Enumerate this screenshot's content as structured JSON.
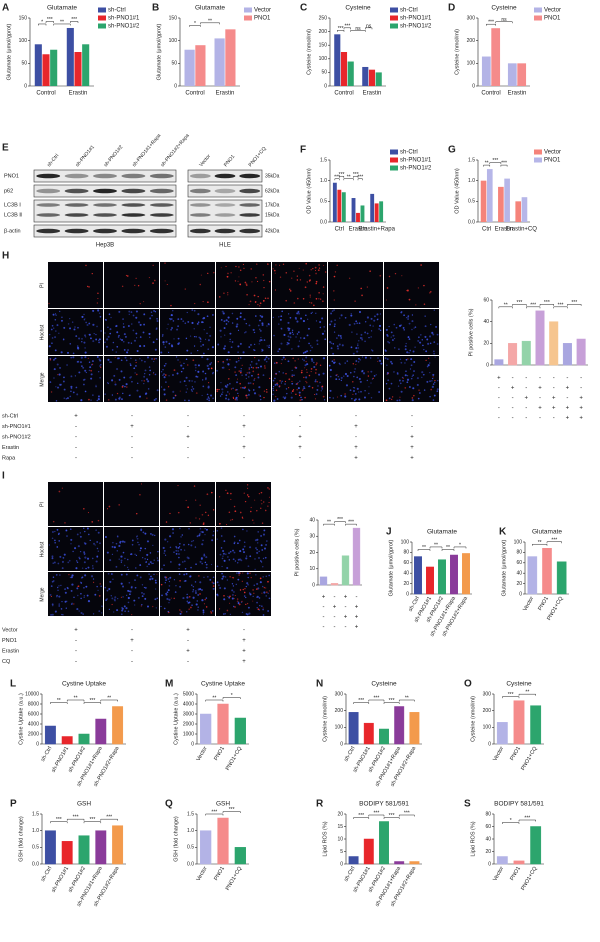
{
  "chart_data": [
    {
      "label": "A",
      "type": "bar",
      "title": "Glutamate",
      "ylabel": "Glutamate (μmol/gprot)",
      "categories": [
        "Control",
        "Erastin"
      ],
      "series": [
        {
          "name": "sh-Ctrl",
          "color": "#3d4fa3",
          "values": [
            92,
            128
          ]
        },
        {
          "name": "sh-PNO1#1",
          "color": "#e8262b",
          "values": [
            70,
            75
          ]
        },
        {
          "name": "sh-PNO1#2",
          "color": "#2ca56d",
          "values": [
            80,
            92
          ]
        }
      ],
      "ylim": [
        0,
        150
      ],
      "yticks": [
        0,
        50,
        100,
        150
      ],
      "annotations": [
        "*",
        "***",
        "**",
        "***"
      ],
      "legend": "right"
    },
    {
      "label": "B",
      "type": "bar",
      "title": "Glutamate",
      "ylabel": "Glutamate (μmol/gprot)",
      "categories": [
        "Control",
        "Erastin"
      ],
      "series": [
        {
          "name": "Vector",
          "color": "#b3b3e6",
          "values": [
            80,
            105
          ]
        },
        {
          "name": "PNO1",
          "color": "#f58b8b",
          "values": [
            90,
            125
          ]
        }
      ],
      "ylim": [
        0,
        150
      ],
      "yticks": [
        0,
        50,
        100,
        150
      ],
      "annotations": [
        "*",
        "**"
      ],
      "legend": "right"
    },
    {
      "label": "C",
      "type": "bar",
      "title": "Cysteine",
      "ylabel": "Cysteine (nmol/ml)",
      "categories": [
        "Control",
        "Erastin"
      ],
      "series": [
        {
          "name": "sh-Ctrl",
          "color": "#3d4fa3",
          "values": [
            190,
            70
          ]
        },
        {
          "name": "sh-PNO1#1",
          "color": "#e8262b",
          "values": [
            125,
            60
          ]
        },
        {
          "name": "sh-PNO1#2",
          "color": "#2ca56d",
          "values": [
            90,
            50
          ]
        }
      ],
      "ylim": [
        0,
        250
      ],
      "yticks": [
        0,
        50,
        100,
        150,
        200,
        250
      ],
      "annotations": [
        "***",
        "***",
        "ns",
        "ns"
      ],
      "legend": "right"
    },
    {
      "label": "D",
      "type": "bar",
      "title": "Cysteine",
      "ylabel": "Cysteine (nmol/ml)",
      "categories": [
        "Control",
        "Erastin"
      ],
      "series": [
        {
          "name": "Vector",
          "color": "#b3b3e6",
          "values": [
            130,
            100
          ]
        },
        {
          "name": "PNO1",
          "color": "#f58b8b",
          "values": [
            255,
            100
          ]
        }
      ],
      "ylim": [
        0,
        300
      ],
      "yticks": [
        0,
        100,
        200,
        300
      ],
      "annotations": [
        "***",
        "ns"
      ],
      "legend": "right"
    },
    {
      "label": "F",
      "type": "bar",
      "ylabel": "OD Value (450nm)",
      "categories": [
        "Ctrl",
        "Erastin",
        "Erastin+Rapa"
      ],
      "series": [
        {
          "name": "sh-Ctrl",
          "color": "#3d4fa3",
          "values": [
            0.95,
            0.58,
            0.68
          ]
        },
        {
          "name": "sh-PNO1#1",
          "color": "#e8262b",
          "values": [
            0.78,
            0.22,
            0.45
          ]
        },
        {
          "name": "sh-PNO1#2",
          "color": "#2ca56d",
          "values": [
            0.72,
            0.4,
            0.5
          ]
        }
      ],
      "ylim": [
        0,
        1.5
      ],
      "yticks": [
        {
          "value": 0,
          "label": "0.0"
        },
        0.5,
        {
          "value": 1,
          "label": "1.0"
        },
        1.5
      ],
      "annotations": [
        "***",
        "***",
        "**",
        "***",
        "***"
      ],
      "legend": "right"
    },
    {
      "label": "G",
      "type": "bar",
      "ylabel": "OD Value (450nm)",
      "categories": [
        "Ctrl",
        "Erastin",
        "Erastin+CQ"
      ],
      "series": [
        {
          "name": "Vector",
          "color": "#f5837a",
          "values": [
            1.0,
            0.85,
            0.5
          ]
        },
        {
          "name": "PNO1",
          "color": "#b6b6e8",
          "values": [
            1.28,
            1.05,
            0.6
          ]
        }
      ],
      "ylim": [
        0,
        1.5
      ],
      "yticks": [
        {
          "value": 0,
          "label": "0.0"
        },
        0.5,
        {
          "value": 1,
          "label": "1.0"
        },
        1.5
      ],
      "annotations": [
        "**",
        "***",
        "***"
      ],
      "legend": "right"
    },
    {
      "type": "bar",
      "ylabel": "PI positive cells (%)",
      "categories": [
        null,
        null,
        null,
        null,
        null,
        null,
        null
      ],
      "values": [
        5,
        20,
        22,
        50,
        40,
        20,
        24
      ],
      "colors": [
        "#a9a6e0",
        "#f4a7a7",
        "#93d3a9",
        "#c7a0d8",
        "#f6c58f",
        "#a9a6e0",
        "#c7a0d8"
      ],
      "ylim": [
        0,
        60
      ],
      "yticks": [
        0,
        20,
        40,
        60
      ],
      "annotations": [
        "**",
        "***",
        "***",
        "***",
        "***",
        "***"
      ]
    },
    {
      "type": "bar",
      "ylabel": "PI positive cells (%)",
      "categories": [
        null,
        null,
        null,
        null
      ],
      "values": [
        5,
        1,
        18,
        35
      ],
      "colors": [
        "#a9a6e0",
        "#f4a7a7",
        "#93d3a9",
        "#c7a0d8"
      ],
      "ylim": [
        0,
        40
      ],
      "yticks": [
        0,
        10,
        20,
        30,
        40
      ],
      "annotations": [
        "**",
        "***",
        "***"
      ]
    },
    {
      "label": "J",
      "type": "bar",
      "title": "Glutamate",
      "ylabel": "Glutamate (μmol/gprot)",
      "categories": [
        "sh-Ctrl",
        "sh-PNO1#1",
        "sh-PNO1#2",
        "sh-PNO1#1+Rapa",
        "sh-PNO1#2+Rapa"
      ],
      "values": [
        72,
        52,
        66,
        75,
        78
      ],
      "colors": [
        "#3d4fa3",
        "#e8262b",
        "#2ca56d",
        "#8a3b9a",
        "#f39a4c"
      ],
      "ylim": [
        0,
        100
      ],
      "yticks": [
        0,
        20,
        40,
        60,
        80,
        100
      ],
      "annotations": [
        "**",
        "**",
        "**",
        "*"
      ]
    },
    {
      "label": "K",
      "type": "bar",
      "title": "Glutamate",
      "ylabel": "Glutamate (μmol/gprot)",
      "categories": [
        "Vector",
        "PNO1",
        "PNO1+CQ"
      ],
      "values": [
        72,
        88,
        62
      ],
      "colors": [
        "#b3b3e6",
        "#f58b8b",
        "#2ca56d"
      ],
      "ylim": [
        0,
        100
      ],
      "yticks": [
        0,
        20,
        40,
        60,
        80,
        100
      ],
      "annotations": [
        "**",
        "***"
      ]
    },
    {
      "label": "L",
      "type": "bar",
      "title": "Cystine Uptake",
      "ylabel": "Cystine Uptake (a.u.)",
      "categories": [
        "sh-Ctrl",
        "sh-PNO1#1",
        "sh-PNO1#2",
        "sh-PNO1#1+Rapa",
        "sh-PNO1#2+Rapa"
      ],
      "values": [
        3600,
        1500,
        2000,
        5000,
        7500
      ],
      "colors": [
        "#3d4fa3",
        "#e8262b",
        "#2ca56d",
        "#8a3b9a",
        "#f39a4c"
      ],
      "ylim": [
        0,
        10000
      ],
      "yticks": [
        0,
        2000,
        4000,
        6000,
        8000,
        10000
      ],
      "annotations": [
        "**",
        "**",
        "***",
        "**"
      ]
    },
    {
      "label": "M",
      "type": "bar",
      "title": "Cystine Uptake",
      "ylabel": "Cystine Uptake (a.u.)",
      "categories": [
        "Vector",
        "PNO1",
        "PNO1+CQ"
      ],
      "values": [
        3000,
        4000,
        2600
      ],
      "colors": [
        "#b3b3e6",
        "#f58b8b",
        "#2ca56d"
      ],
      "ylim": [
        0,
        5000
      ],
      "yticks": [
        0,
        1000,
        2000,
        3000,
        4000,
        5000
      ],
      "annotations": [
        "**",
        "*"
      ]
    },
    {
      "label": "N",
      "type": "bar",
      "title": "Cysteine",
      "ylabel": "Cysteine (nmol/ml)",
      "categories": [
        "sh-Ctrl",
        "sh-PNO1#1",
        "sh-PNO1#2",
        "sh-PNO1#1+Rapa",
        "sh-PNO1#2+Rapa"
      ],
      "values": [
        190,
        125,
        90,
        225,
        190
      ],
      "colors": [
        "#3d4fa3",
        "#e8262b",
        "#2ca56d",
        "#8a3b9a",
        "#f39a4c"
      ],
      "ylim": [
        0,
        300
      ],
      "yticks": [
        0,
        100,
        200,
        300
      ],
      "annotations": [
        "***",
        "***",
        "***",
        "**"
      ]
    },
    {
      "label": "O",
      "type": "bar",
      "title": "Cysteine",
      "ylabel": "Cysteine (nmol/ml)",
      "categories": [
        "Vector",
        "PNO1",
        "PNO1+CQ"
      ],
      "values": [
        130,
        260,
        230
      ],
      "colors": [
        "#b3b3e6",
        "#f58b8b",
        "#2ca56d"
      ],
      "ylim": [
        0,
        300
      ],
      "yticks": [
        0,
        100,
        200,
        300
      ],
      "annotations": [
        "***",
        "**"
      ]
    },
    {
      "label": "P",
      "type": "bar",
      "title": "GSH",
      "ylabel": "GSH (fold change)",
      "categories": [
        "sh-Ctrl",
        "sh-PNO1#1",
        "sh-PNO1#2",
        "sh-PNO1#1+Rapa",
        "sh-PNO1#2+Rapa"
      ],
      "values": [
        1.0,
        0.68,
        0.85,
        1.0,
        1.15
      ],
      "colors": [
        "#3d4fa3",
        "#e8262b",
        "#2ca56d",
        "#8a3b9a",
        "#f39a4c"
      ],
      "ylim": [
        0,
        1.5
      ],
      "yticks": [
        {
          "value": 0,
          "label": "0.0"
        },
        0.5,
        {
          "value": 1,
          "label": "1.0"
        },
        1.5
      ],
      "annotations": [
        "***",
        "***",
        "***",
        "***"
      ]
    },
    {
      "label": "Q",
      "type": "bar",
      "title": "GSH",
      "ylabel": "GSH (fold change)",
      "categories": [
        "Vector",
        "PNO1",
        "PNO1+CQ"
      ],
      "values": [
        1.0,
        1.38,
        0.5
      ],
      "colors": [
        "#b3b3e6",
        "#f58b8b",
        "#2ca56d"
      ],
      "ylim": [
        0,
        1.5
      ],
      "yticks": [
        {
          "value": 0,
          "label": "0.0"
        },
        0.5,
        {
          "value": 1,
          "label": "1.0"
        },
        1.5
      ],
      "annotations": [
        "***",
        "***"
      ]
    },
    {
      "label": "R",
      "type": "bar",
      "title": "BODIPY 581/591",
      "ylabel": "Lipid ROS (%)",
      "categories": [
        "sh-Ctrl",
        "sh-PNO1#1",
        "sh-PNO1#2",
        "sh-PNO1#1+Rapa",
        "sh-PNO1#2+Rapa"
      ],
      "values": [
        3,
        10,
        17,
        1,
        1
      ],
      "colors": [
        "#3d4fa3",
        "#e8262b",
        "#2ca56d",
        "#8a3b9a",
        "#f39a4c"
      ],
      "ylim": [
        0,
        20
      ],
      "yticks": [
        0,
        5,
        10,
        15,
        20
      ],
      "annotations": [
        "***",
        "***",
        "***",
        "***"
      ]
    },
    {
      "label": "S",
      "type": "bar",
      "title": "BODIPY 581/591",
      "ylabel": "Lipid ROS (%)",
      "categories": [
        "Vector",
        "PNO1",
        "PNO1+CQ"
      ],
      "values": [
        12,
        5,
        60
      ],
      "colors": [
        "#b3b3e6",
        "#f58b8b",
        "#2ca56d"
      ],
      "ylim": [
        0,
        80
      ],
      "yticks": [
        0,
        20,
        40,
        60,
        80
      ],
      "annotations": [
        "*",
        "***"
      ]
    }
  ],
  "blot": {
    "label": "E",
    "hep3b": {
      "name": "Hep3B",
      "lanes": [
        "sh-Ctrl",
        "sh-PNO1#1",
        "sh-PNO1#2",
        "sh-PNO1#1+Rapa",
        "sh-PNO1#2+Rapa"
      ]
    },
    "hle": {
      "name": "HLE",
      "lanes": [
        "Vector",
        "PNO1",
        "PNO1+CQ"
      ]
    },
    "proteins": [
      "PNO1",
      "p62",
      "LC3B Ⅰ",
      "LC3B Ⅱ",
      "β-actin"
    ],
    "sizes": [
      "35kDa",
      "62kDa",
      "17kDa",
      "15kDa",
      "42kDa"
    ]
  },
  "micro_h": {
    "label": "H",
    "rows": [
      "PI",
      "Hochst",
      "Merge"
    ],
    "treatments": [
      {
        "name": "sh-Ctrl",
        "marks": [
          "+",
          "-",
          "-",
          "-",
          "-",
          "-",
          "-"
        ]
      },
      {
        "name": "sh-PNO1#1",
        "marks": [
          "-",
          "+",
          "-",
          "+",
          "-",
          "+",
          "-"
        ]
      },
      {
        "name": "sh-PNO1#2",
        "marks": [
          "-",
          "-",
          "+",
          "-",
          "+",
          "-",
          "+"
        ]
      },
      {
        "name": "Erastin",
        "marks": [
          "-",
          "-",
          "-",
          "+",
          "+",
          "+",
          "+"
        ]
      },
      {
        "name": "Rapa",
        "marks": [
          "-",
          "-",
          "-",
          "-",
          "-",
          "+",
          "+"
        ]
      }
    ]
  },
  "micro_i": {
    "label": "I",
    "rows": [
      "PI",
      "Hochst",
      "Merge"
    ],
    "treatments": [
      {
        "name": "Vector",
        "marks": [
          "+",
          "-",
          "+",
          "-"
        ]
      },
      {
        "name": "PNO1",
        "marks": [
          "-",
          "+",
          "-",
          "+"
        ]
      },
      {
        "name": "Erastin",
        "marks": [
          "-",
          "-",
          "+",
          "+"
        ]
      },
      {
        "name": "CQ",
        "marks": [
          "-",
          "-",
          "-",
          "+"
        ]
      }
    ]
  }
}
